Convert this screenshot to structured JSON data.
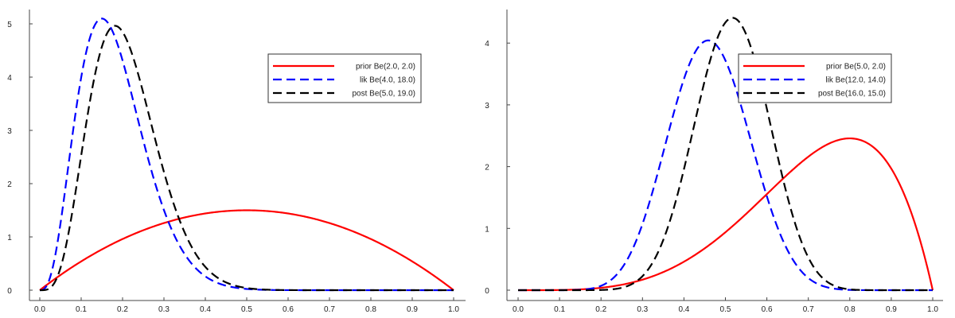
{
  "chart_data": [
    {
      "type": "line",
      "title": "",
      "xlabel": "",
      "ylabel": "",
      "xlim": [
        0,
        1
      ],
      "ylim": [
        0,
        5.25
      ],
      "x_ticks": [
        "0.0",
        "0.1",
        "0.2",
        "0.3",
        "0.4",
        "0.5",
        "0.6",
        "0.7",
        "0.8",
        "0.9",
        "1.0"
      ],
      "y_ticks": [
        "0",
        "1",
        "2",
        "3",
        "4",
        "5"
      ],
      "grid": false,
      "legend_position": "upper-right",
      "series": [
        {
          "name": "prior Be(2.0, 2.0)",
          "distribution": "beta",
          "a": 2.0,
          "b": 2.0,
          "color": "#ff0000",
          "style": "solid",
          "peak": [
            0.5,
            1.5
          ]
        },
        {
          "name": "lik Be(4.0, 18.0)",
          "distribution": "beta",
          "a": 4.0,
          "b": 18.0,
          "color": "#0000ff",
          "style": "dashed",
          "peak": [
            0.15,
            5.08
          ]
        },
        {
          "name": "post Be(5.0, 19.0)",
          "distribution": "beta",
          "a": 5.0,
          "b": 19.0,
          "color": "#000000",
          "style": "dashed",
          "peak": [
            0.18,
            4.92
          ]
        }
      ]
    },
    {
      "type": "line",
      "title": "",
      "xlabel": "",
      "ylabel": "",
      "xlim": [
        0,
        1
      ],
      "ylim": [
        0,
        4.55
      ],
      "x_ticks": [
        "0.0",
        "0.1",
        "0.2",
        "0.3",
        "0.4",
        "0.5",
        "0.6",
        "0.7",
        "0.8",
        "0.9",
        "1.0"
      ],
      "y_ticks": [
        "0",
        "1",
        "2",
        "3",
        "4"
      ],
      "grid": false,
      "legend_position": "upper-right",
      "series": [
        {
          "name": "prior Be(5.0, 2.0)",
          "distribution": "beta",
          "a": 5.0,
          "b": 2.0,
          "color": "#ff0000",
          "style": "solid",
          "peak": [
            0.8,
            2.46
          ]
        },
        {
          "name": "lik Be(12.0, 14.0)",
          "distribution": "beta",
          "a": 12.0,
          "b": 14.0,
          "color": "#0000ff",
          "style": "dashed",
          "peak": [
            0.46,
            4.04
          ]
        },
        {
          "name": "post Be(16.0, 15.0)",
          "distribution": "beta",
          "a": 16.0,
          "b": 15.0,
          "color": "#000000",
          "style": "dashed",
          "peak": [
            0.52,
            4.41
          ]
        }
      ]
    }
  ]
}
